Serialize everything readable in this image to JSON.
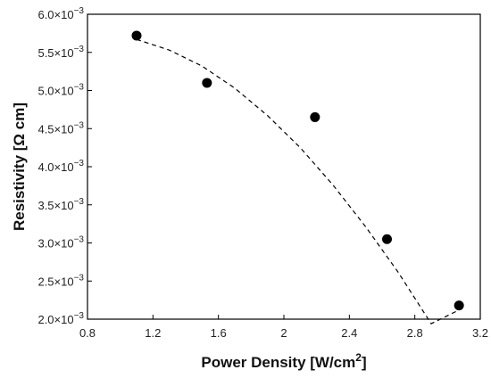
{
  "chart_data": {
    "type": "scatter",
    "xlabel": "Power Density [W/cm2]",
    "xlabel_main": "Power Density [W/cm",
    "xlabel_sup": "2",
    "xlabel_end": "]",
    "ylabel": "Resistivity [Ω cm]",
    "xlim": [
      0.8,
      3.2
    ],
    "ylim": [
      0.002,
      0.006
    ],
    "x_ticks": [
      0.8,
      1.2,
      1.6,
      2.0,
      2.4,
      2.8,
      3.2
    ],
    "x_tick_labels": [
      "0.8",
      "1.2",
      "1.6",
      "2",
      "2.4",
      "2.8",
      "3.2"
    ],
    "y_ticks": [
      0.002,
      0.0025,
      0.003,
      0.0035,
      0.004,
      0.0045,
      0.005,
      0.0055,
      0.006
    ],
    "y_tick_mantissas": [
      "2.0×10",
      "2.5×10",
      "3.0×10",
      "3.5×10",
      "4.0×10",
      "4.5×10",
      "5.0×10",
      "5.5×10",
      "6.0×10"
    ],
    "y_tick_exponent": "−3",
    "points": [
      {
        "x": 1.1,
        "y": 0.00572
      },
      {
        "x": 1.53,
        "y": 0.0051
      },
      {
        "x": 2.19,
        "y": 0.00465
      },
      {
        "x": 2.63,
        "y": 0.00305
      },
      {
        "x": 3.07,
        "y": 0.00218
      }
    ],
    "fit_line": {
      "style": "dashed",
      "x": [
        1.1,
        1.3,
        1.5,
        1.7,
        1.9,
        2.1,
        2.3,
        2.5,
        2.7,
        2.9,
        3.07
      ],
      "y": [
        0.00567,
        0.00553,
        0.00532,
        0.00503,
        0.00467,
        0.00425,
        0.00376,
        0.00321,
        0.00261,
        0.00194,
        0.00212
      ]
    },
    "colors": {
      "marker": "#000000",
      "axis": "#000000"
    },
    "grid": false
  }
}
